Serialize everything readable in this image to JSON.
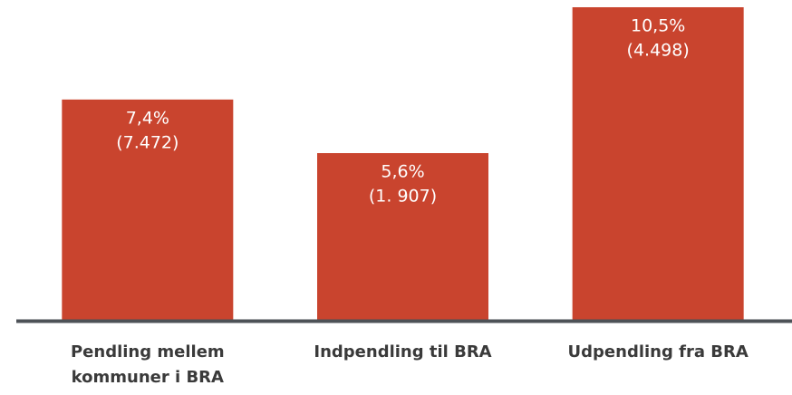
{
  "chart_data": {
    "type": "bar",
    "categories": [
      "Pendling mellem kommuner i BRA",
      "Indpendling til BRA",
      "Udpendling fra BRA"
    ],
    "values": [
      7.4,
      5.6,
      10.5
    ],
    "value_labels": [
      "7,4%",
      "5,6%",
      "10,5%"
    ],
    "count_labels": [
      "(7.472)",
      "(1. 907)",
      "(4.498)"
    ],
    "color": "#c9442e"
  }
}
